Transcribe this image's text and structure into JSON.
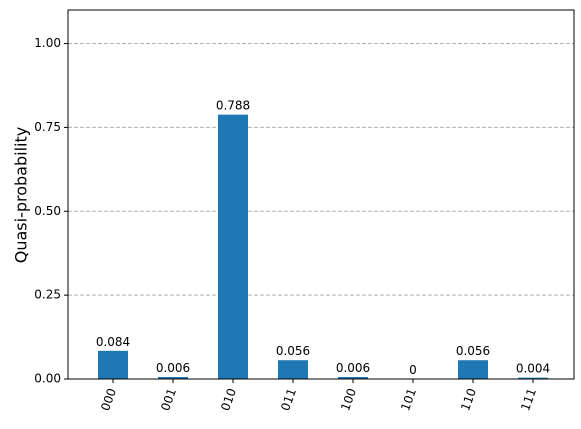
{
  "chart_data": {
    "type": "bar",
    "ylabel": "Quasi-probability",
    "categories": [
      "000",
      "001",
      "010",
      "011",
      "100",
      "101",
      "110",
      "111"
    ],
    "values": [
      0.084,
      0.006,
      0.788,
      0.056,
      0.006,
      0,
      0.056,
      0.004
    ],
    "color": "#1f77b4",
    "ylim": [
      0,
      1.1
    ],
    "yticks": [
      {
        "value": 0,
        "label": "0.00"
      },
      {
        "value": 0.25,
        "label": "0.25"
      },
      {
        "value": 0.5,
        "label": "0.50"
      },
      {
        "value": 0.75,
        "label": "0.75"
      },
      {
        "value": 1,
        "label": "1.00"
      }
    ],
    "grid": true
  }
}
